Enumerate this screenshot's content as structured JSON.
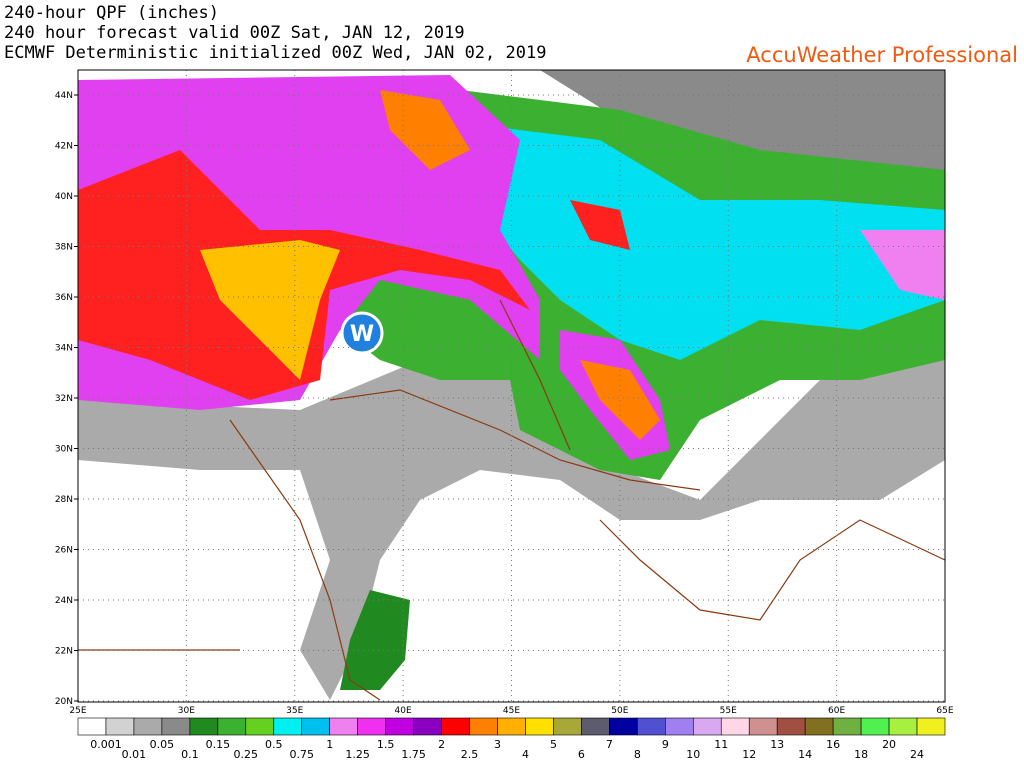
{
  "header": {
    "title": "240-hour QPF (inches)",
    "valid": "240 hour forecast valid 00Z Sat, JAN 12, 2019",
    "init": "ECMWF Deterministic initialized 00Z Wed, JAN 02, 2019",
    "brand": "AccuWeather Professional"
  },
  "map": {
    "logo_text": "W",
    "lat_labels": [
      "44N",
      "42N",
      "40N",
      "38N",
      "36N",
      "34N",
      "32N",
      "30N",
      "28N",
      "26N",
      "24N",
      "22N",
      "20N"
    ],
    "lon_labels": [
      "25E",
      "30E",
      "35E",
      "40E",
      "45E",
      "50E",
      "55E",
      "60E",
      "65E"
    ]
  },
  "legend": {
    "colors": [
      "#ffffff",
      "#d2d2d2",
      "#aaaaaa",
      "#8a8a8a",
      "#208a20",
      "#3cb030",
      "#66d020",
      "#00f0f0",
      "#00c0f0",
      "#f080f0",
      "#f030f0",
      "#c000e0",
      "#8a00c0",
      "#ff0000",
      "#ff8000",
      "#ffb000",
      "#ffe000",
      "#a8a838",
      "#5c5c6e",
      "#0000a0",
      "#5050d0",
      "#a080f0",
      "#d8a8f0",
      "#ffd6e6",
      "#d09090",
      "#a05040",
      "#807020",
      "#70b040",
      "#50f050",
      "#a8f040",
      "#f0f020"
    ],
    "labels": [
      "0.001",
      "0.01",
      "0.05",
      "0.1",
      "0.15",
      "0.25",
      "0.5",
      "0.75",
      "1",
      "1.25",
      "1.5",
      "1.75",
      "2",
      "2.5",
      "3",
      "4",
      "5",
      "6",
      "7",
      "8",
      "9",
      "10",
      "11",
      "12",
      "13",
      "14",
      "16",
      "18",
      "20",
      "24"
    ]
  }
}
